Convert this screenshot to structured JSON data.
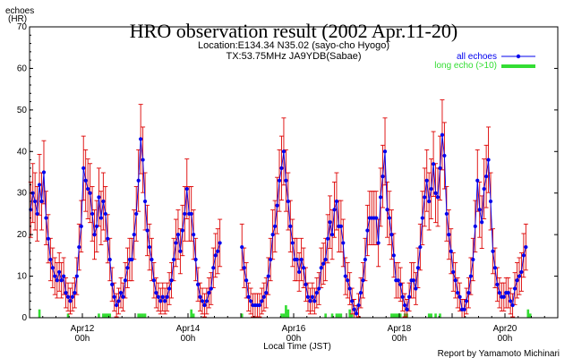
{
  "chart_data": {
    "type": "line",
    "title": "HRO observation result (2002 Apr.11-20)",
    "subtitle_lines": [
      "Location:E134.34 N35.02 (sayo-cho Hyogo)",
      "TX:53.75MHz JA9YDB(Sabae)"
    ],
    "ylabel_lines": [
      "echoes",
      "(HR)"
    ],
    "xlabel": "Local Time (JST)",
    "credit": "Report by Yamamoto Michinari",
    "ylim": [
      0,
      70
    ],
    "yticks": [
      "0",
      "10",
      "20",
      "30",
      "40",
      "50",
      "60",
      "70"
    ],
    "xlim_hours": [
      0,
      240
    ],
    "xticks": [
      {
        "date": "Apr12",
        "time": "00h"
      },
      {
        "date": "Apr14",
        "time": "00h"
      },
      {
        "date": "Apr16",
        "time": "00h"
      },
      {
        "date": "Apr18",
        "time": "00h"
      },
      {
        "date": "Apr20",
        "time": "00h"
      }
    ],
    "xtick_hours": [
      24,
      72,
      120,
      168,
      216
    ],
    "legend_position": "top-right",
    "colors": {
      "all_echoes": "#0000ee",
      "errorbar": "#dd0000",
      "long_echo": "#33dd33",
      "axis": "#000000"
    },
    "series": [
      {
        "name": "all echoes",
        "note": "hourly HR, null = no data; x = hours from Apr11 00h",
        "values": [
          26,
          30,
          28,
          25,
          32,
          28,
          35,
          24,
          19,
          14,
          12,
          10,
          9,
          11,
          9,
          10,
          6,
          5,
          4,
          5,
          6,
          10,
          17,
          22,
          36,
          33,
          31,
          30,
          25,
          20,
          22,
          29,
          24,
          28,
          25,
          19,
          14,
          8,
          5,
          3,
          4,
          6,
          5,
          9,
          12,
          14,
          14,
          20,
          25,
          33,
          43,
          38,
          28,
          21,
          17,
          14,
          9,
          6,
          5,
          4,
          5,
          4,
          5,
          7,
          9,
          14,
          18,
          20,
          16,
          21,
          25,
          31,
          25,
          25,
          20,
          14,
          8,
          5,
          4,
          3,
          4,
          6,
          7,
          12,
          15,
          16,
          18,
          null,
          null,
          null,
          null,
          null,
          null,
          null,
          null,
          null,
          17,
          12,
          9,
          5,
          4,
          3,
          3,
          3,
          3,
          4,
          5,
          6,
          10,
          14,
          20,
          22,
          27,
          33,
          36,
          40,
          33,
          28,
          22,
          18,
          14,
          14,
          11,
          14,
          12,
          8,
          5,
          4,
          5,
          4,
          6,
          7,
          12,
          13,
          14,
          19,
          23,
          20,
          26,
          28,
          22,
          22,
          18,
          10,
          9,
          7,
          4,
          2,
          1,
          3,
          6,
          9,
          14,
          21,
          24,
          24,
          24,
          24,
          18,
          29,
          34,
          40,
          26,
          24,
          20,
          15,
          9,
          9,
          8,
          5,
          3,
          2,
          5,
          9,
          9,
          7,
          12,
          17,
          24,
          29,
          33,
          28,
          31,
          37,
          30,
          29,
          36,
          44,
          39,
          25,
          20,
          16,
          11,
          9,
          6,
          5,
          2,
          2,
          4,
          6,
          10,
          14,
          22,
          33,
          26,
          23,
          31,
          34,
          38,
          28,
          16,
          12,
          8,
          6,
          5,
          5,
          6,
          6,
          4,
          3,
          7,
          9,
          10,
          11,
          15,
          17,
          null,
          null,
          null,
          null,
          null,
          null,
          null,
          null,
          null,
          null,
          null,
          null,
          null,
          null
        ]
      },
      {
        "name": "long echo (>10)",
        "values": [
          0,
          0,
          0,
          0,
          2,
          0,
          0,
          0,
          0,
          0,
          0,
          0,
          0,
          0,
          0,
          0,
          0,
          1,
          0,
          0,
          0,
          0,
          0,
          0,
          0,
          0,
          0,
          0,
          0,
          0,
          0,
          1,
          0,
          1,
          1,
          1,
          1,
          0,
          0,
          0,
          0,
          0,
          0,
          0,
          0,
          0,
          0,
          0,
          0,
          1,
          1,
          1,
          1,
          0,
          0,
          0,
          0,
          0,
          0,
          0,
          0,
          0,
          0,
          0,
          0,
          0,
          0,
          0,
          0,
          0,
          0,
          0,
          0,
          2,
          1,
          0,
          0,
          0,
          0,
          0,
          0,
          0,
          0,
          0,
          0,
          0,
          0,
          0,
          0,
          0,
          0,
          0,
          0,
          0,
          0,
          0,
          1,
          0,
          0,
          0,
          0,
          0,
          0,
          0,
          0,
          0,
          0,
          0,
          0,
          0,
          0,
          0,
          0,
          0,
          1,
          1,
          3,
          2,
          0,
          0,
          0,
          0,
          0,
          0,
          0,
          0,
          0,
          0,
          0,
          0,
          0,
          0,
          0,
          0,
          1,
          0,
          0,
          1,
          0,
          1,
          1,
          1,
          0,
          0,
          0,
          2,
          1,
          0,
          0,
          0,
          0,
          0,
          0,
          0,
          0,
          0,
          0,
          0,
          0,
          0,
          0,
          0,
          0,
          0,
          1,
          1,
          1,
          1,
          1,
          0,
          1,
          1,
          0,
          0,
          0,
          0,
          0,
          0,
          0,
          0,
          0,
          1,
          1,
          0,
          1,
          0,
          1,
          0,
          0,
          0,
          0,
          0,
          0,
          0,
          0,
          0,
          0,
          0,
          0,
          0,
          0,
          0,
          0,
          0,
          0,
          0,
          0,
          0,
          0,
          0,
          0,
          0,
          0,
          0,
          0,
          0,
          0,
          0,
          0,
          0,
          0,
          0,
          0,
          0,
          0,
          0,
          2,
          1,
          0,
          0,
          0,
          0,
          0,
          0,
          0,
          0,
          0,
          0,
          0,
          0
        ]
      }
    ]
  }
}
